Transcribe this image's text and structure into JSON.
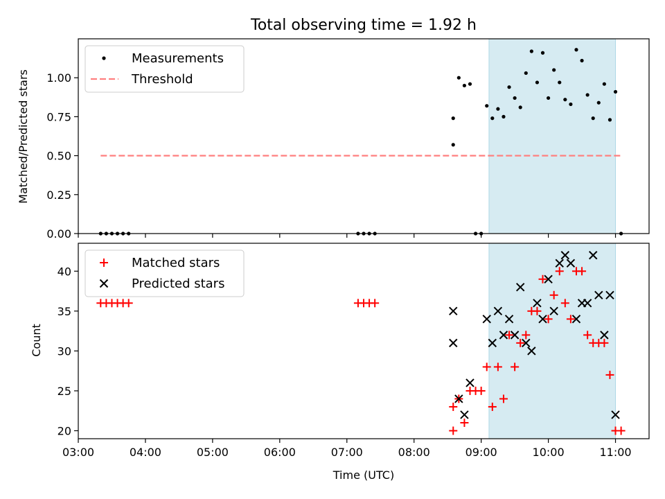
{
  "chart_data": [
    {
      "type": "scatter",
      "title": "Total observing time = 1.92 h",
      "xlabel": "",
      "ylabel": "Matched/Predicted stars",
      "xlim": [
        "03:00",
        "11:30"
      ],
      "ylim": [
        0,
        1.25
      ],
      "yticks": [
        "0.00",
        "0.25",
        "0.50",
        "0.75",
        "1.00"
      ],
      "legend_position": "top-left",
      "shaded_range": [
        "09:07",
        "11:00"
      ],
      "shade_color": "#add8e6",
      "series": [
        {
          "name": "Measurements",
          "kind": "scatter",
          "marker": "dot",
          "color": "#000000",
          "points": [
            [
              "03:20",
              0
            ],
            [
              "03:25",
              0
            ],
            [
              "03:30",
              0
            ],
            [
              "03:35",
              0
            ],
            [
              "03:40",
              0
            ],
            [
              "03:45",
              0
            ],
            [
              "07:10",
              0
            ],
            [
              "07:15",
              0
            ],
            [
              "07:20",
              0
            ],
            [
              "07:25",
              0
            ],
            [
              "08:35",
              0.57
            ],
            [
              "08:35",
              0.74
            ],
            [
              "08:40",
              1.0
            ],
            [
              "08:45",
              0.95
            ],
            [
              "08:50",
              0.96
            ],
            [
              "08:55",
              0
            ],
            [
              "09:00",
              0
            ],
            [
              "09:05",
              0.82
            ],
            [
              "09:10",
              0.74
            ],
            [
              "09:15",
              0.8
            ],
            [
              "09:20",
              0.75
            ],
            [
              "09:25",
              0.94
            ],
            [
              "09:30",
              0.87
            ],
            [
              "09:35",
              0.81
            ],
            [
              "09:40",
              1.03
            ],
            [
              "09:45",
              1.17
            ],
            [
              "09:50",
              0.97
            ],
            [
              "09:55",
              1.16
            ],
            [
              "10:00",
              0.87
            ],
            [
              "10:05",
              1.05
            ],
            [
              "10:10",
              0.97
            ],
            [
              "10:15",
              0.86
            ],
            [
              "10:20",
              0.83
            ],
            [
              "10:25",
              1.18
            ],
            [
              "10:30",
              1.11
            ],
            [
              "10:35",
              0.89
            ],
            [
              "10:40",
              0.74
            ],
            [
              "10:45",
              0.84
            ],
            [
              "10:50",
              0.96
            ],
            [
              "10:55",
              0.73
            ],
            [
              "11:00",
              0.91
            ],
            [
              "11:05",
              0
            ]
          ]
        },
        {
          "name": "Threshold",
          "kind": "line",
          "style": "dashed",
          "color": "#ff7f7f",
          "points": [
            [
              "03:20",
              0.5
            ],
            [
              "11:05",
              0.5
            ]
          ]
        }
      ]
    },
    {
      "type": "scatter",
      "title": "",
      "xlabel": "Time (UTC)",
      "ylabel": "Count",
      "xlim": [
        "03:00",
        "11:30"
      ],
      "ylim": [
        19,
        43.5
      ],
      "yticks": [
        "20",
        "25",
        "30",
        "35",
        "40"
      ],
      "xticks": [
        "03:00",
        "04:00",
        "05:00",
        "06:00",
        "07:00",
        "08:00",
        "09:00",
        "10:00",
        "11:00"
      ],
      "legend_position": "top-left",
      "shaded_range": [
        "09:07",
        "11:00"
      ],
      "shade_color": "#add8e6",
      "series": [
        {
          "name": "Matched stars",
          "marker": "plus",
          "color": "#ff0000",
          "points": [
            [
              "03:20",
              36
            ],
            [
              "03:25",
              36
            ],
            [
              "03:30",
              36
            ],
            [
              "03:35",
              36
            ],
            [
              "03:40",
              36
            ],
            [
              "03:45",
              36
            ],
            [
              "07:10",
              36
            ],
            [
              "07:15",
              36
            ],
            [
              "07:20",
              36
            ],
            [
              "07:25",
              36
            ],
            [
              "08:35",
              20
            ],
            [
              "08:35",
              23
            ],
            [
              "08:40",
              24
            ],
            [
              "08:45",
              21
            ],
            [
              "08:50",
              25
            ],
            [
              "08:55",
              25
            ],
            [
              "09:00",
              25
            ],
            [
              "09:05",
              28
            ],
            [
              "09:10",
              23
            ],
            [
              "09:15",
              28
            ],
            [
              "09:20",
              24
            ],
            [
              "09:25",
              32
            ],
            [
              "09:30",
              28
            ],
            [
              "09:35",
              31
            ],
            [
              "09:40",
              32
            ],
            [
              "09:45",
              35
            ],
            [
              "09:50",
              35
            ],
            [
              "09:55",
              39
            ],
            [
              "10:00",
              34
            ],
            [
              "10:05",
              37
            ],
            [
              "10:10",
              40
            ],
            [
              "10:15",
              36
            ],
            [
              "10:20",
              34
            ],
            [
              "10:25",
              40
            ],
            [
              "10:30",
              40
            ],
            [
              "10:35",
              32
            ],
            [
              "10:40",
              31
            ],
            [
              "10:45",
              31
            ],
            [
              "10:50",
              31
            ],
            [
              "10:55",
              27
            ],
            [
              "11:00",
              20
            ],
            [
              "11:05",
              20
            ]
          ]
        },
        {
          "name": "Predicted stars",
          "marker": "x",
          "color": "#000000",
          "points": [
            [
              "08:35",
              35
            ],
            [
              "08:35",
              31
            ],
            [
              "08:40",
              24
            ],
            [
              "08:45",
              22
            ],
            [
              "08:50",
              26
            ],
            [
              "09:05",
              34
            ],
            [
              "09:10",
              31
            ],
            [
              "09:15",
              35
            ],
            [
              "09:20",
              32
            ],
            [
              "09:25",
              34
            ],
            [
              "09:30",
              32
            ],
            [
              "09:35",
              38
            ],
            [
              "09:40",
              31
            ],
            [
              "09:45",
              30
            ],
            [
              "09:50",
              36
            ],
            [
              "09:55",
              34
            ],
            [
              "10:00",
              39
            ],
            [
              "10:05",
              35
            ],
            [
              "10:10",
              41
            ],
            [
              "10:15",
              42
            ],
            [
              "10:20",
              41
            ],
            [
              "10:25",
              34
            ],
            [
              "10:30",
              36
            ],
            [
              "10:35",
              36
            ],
            [
              "10:40",
              42
            ],
            [
              "10:45",
              37
            ],
            [
              "10:50",
              32
            ],
            [
              "10:55",
              37
            ],
            [
              "11:00",
              22
            ]
          ]
        }
      ]
    }
  ]
}
